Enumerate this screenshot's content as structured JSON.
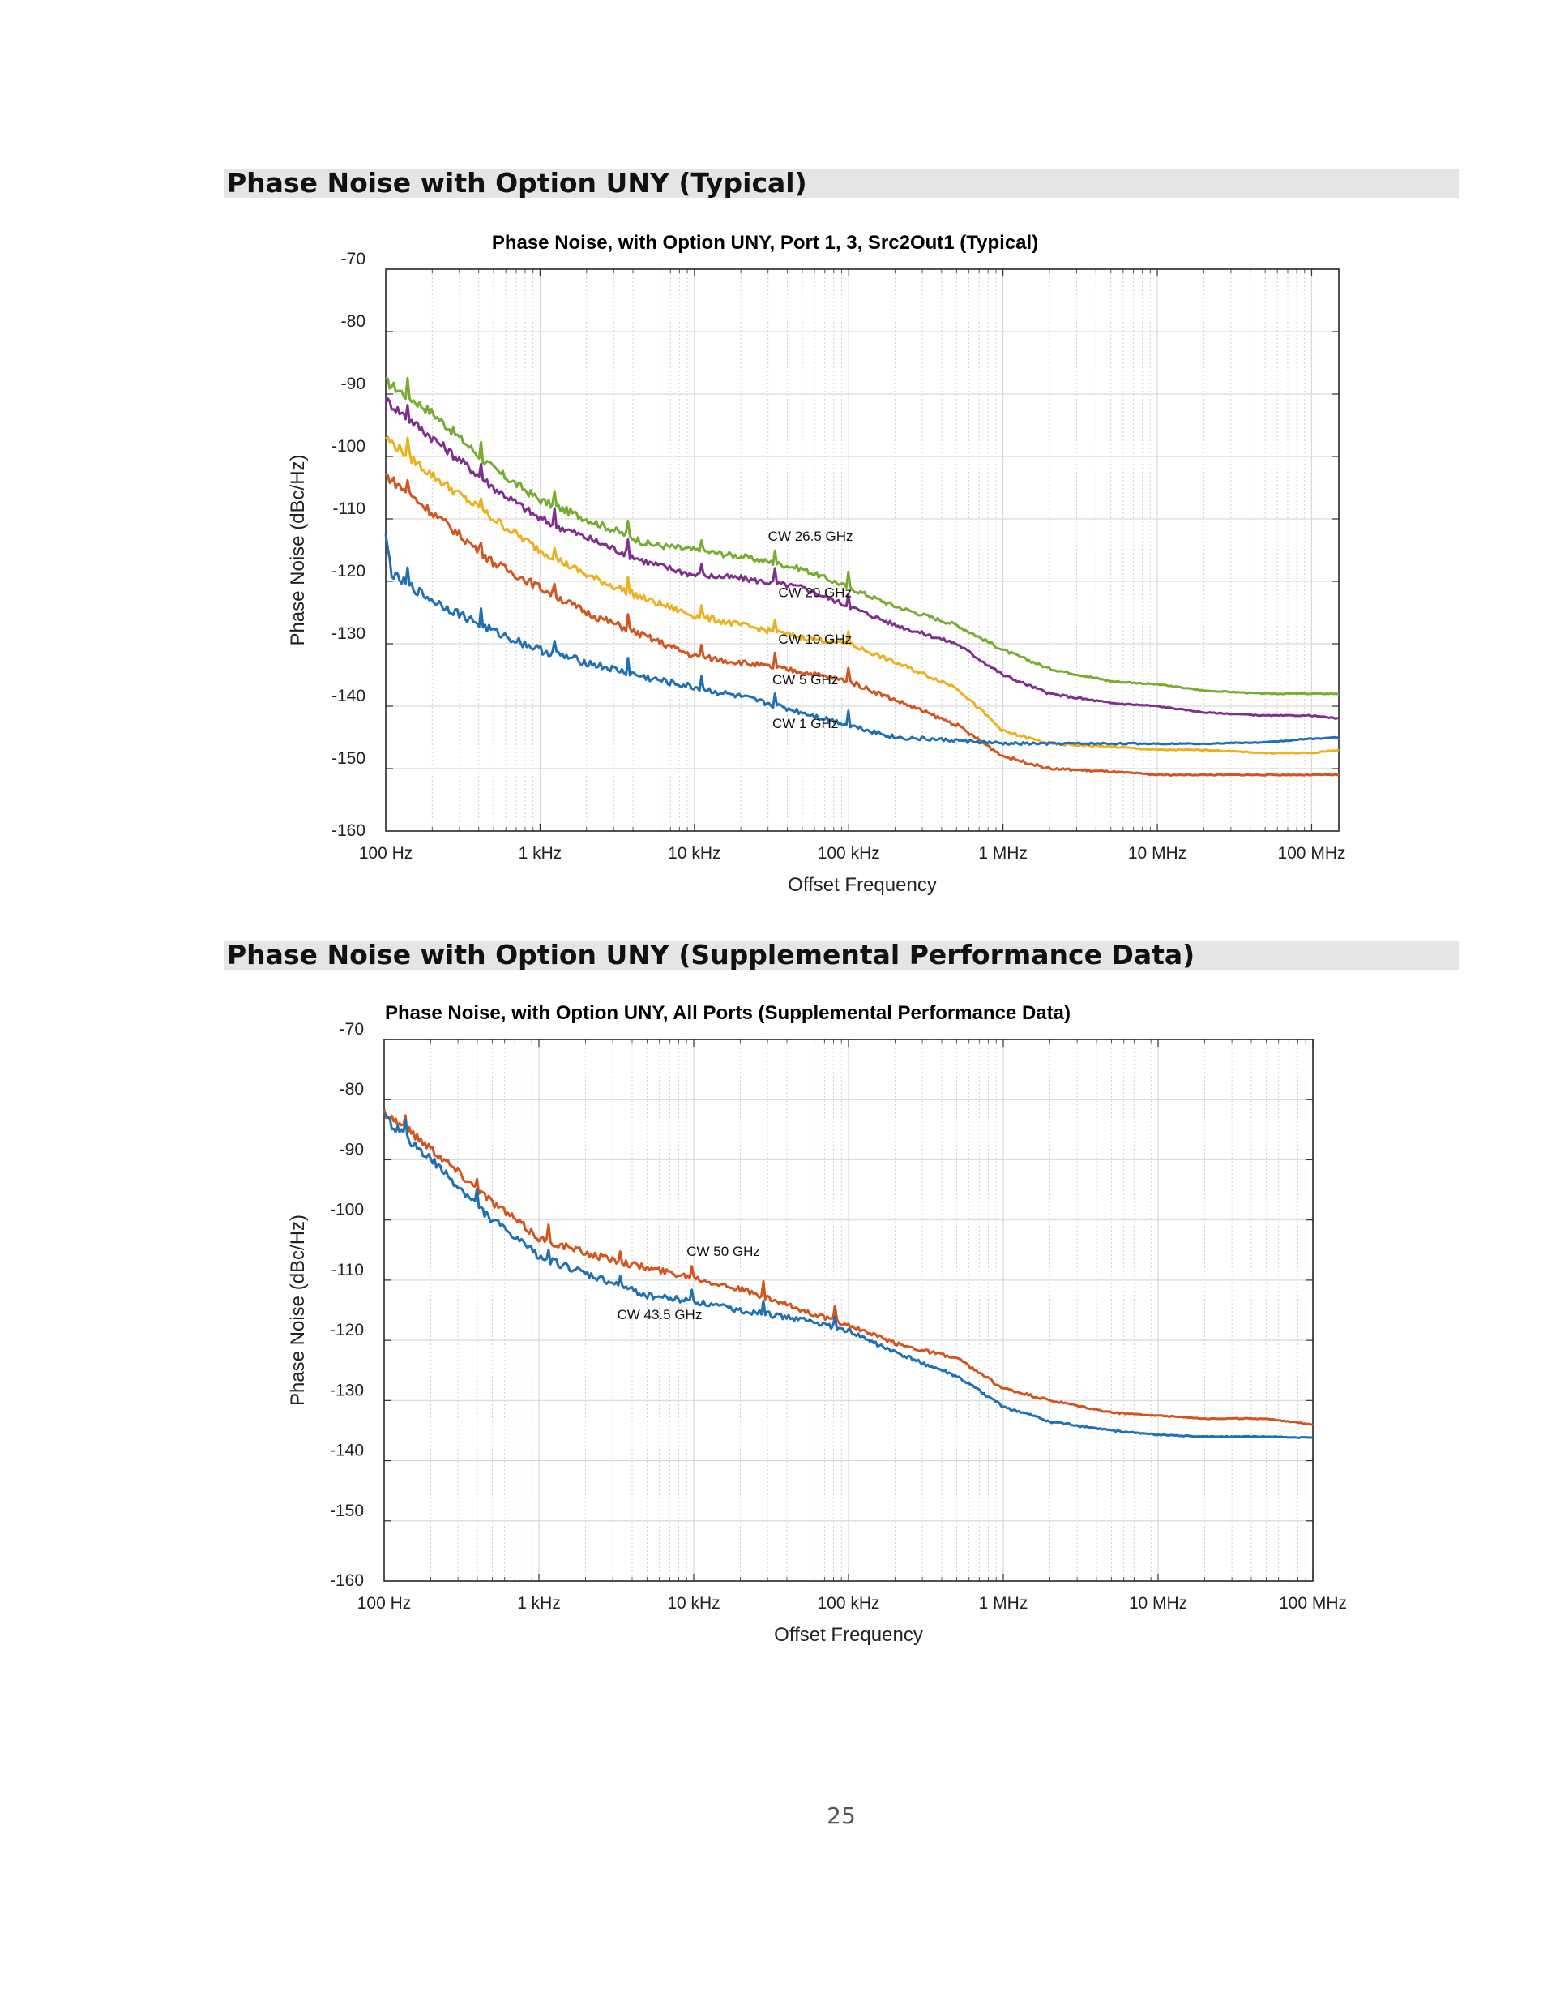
{
  "sections": [
    {
      "title": "Phase Noise with Option UNY (Typical)"
    },
    {
      "title": "Phase Noise with Option UNY (Supplemental Performance Data)"
    }
  ],
  "page_number": "25",
  "colors": {
    "blue": "#1f6fb4",
    "orange": "#d4541e",
    "yellow": "#edb120",
    "purple": "#7e2f8e",
    "green": "#77ac30",
    "section_bar": "#e5e5e5",
    "grid": "#d9d9d9"
  },
  "chart_data": [
    {
      "type": "line",
      "title": "Phase Noise, with Option UNY, Port 1, 3, Src2Out1 (Typical)",
      "xlabel": "Offset Frequency",
      "ylabel": "Phase Noise (dBc/Hz)",
      "x_scale": "log",
      "xlim": [
        100,
        150000000
      ],
      "ylim": [
        -160,
        -70
      ],
      "xticks": [
        100,
        1000,
        10000,
        100000,
        1000000,
        10000000,
        100000000
      ],
      "xtick_labels": [
        "100 Hz",
        "1 kHz",
        "10 kHz",
        "100 kHz",
        "1 MHz",
        "10 MHz",
        "100 MHz"
      ],
      "yticks": [
        -70,
        -80,
        -90,
        -100,
        -110,
        -120,
        -130,
        -140,
        -150,
        -160
      ],
      "ytick_labels": [
        "-70",
        "-80",
        "-90",
        "-100",
        "-110",
        "-120",
        "-130",
        "-140",
        "-150",
        "-160"
      ],
      "grid": true,
      "series": [
        {
          "name": "CW 26.5 GHz",
          "color": "green",
          "x": [
            100,
            200,
            500,
            1000,
            2000,
            5000,
            10000,
            20000,
            50000,
            100000,
            200000,
            500000,
            1000000,
            2000000,
            5000000,
            10000000,
            20000000,
            50000000,
            100000000,
            150000000
          ],
          "y": [
            -88,
            -93,
            -102,
            -107,
            -110,
            -114,
            -115,
            -116,
            -118,
            -121,
            -124,
            -127,
            -131,
            -134,
            -136,
            -136.5,
            -137.5,
            -138,
            -138,
            -138
          ]
        },
        {
          "name": "CW 20 GHz",
          "color": "purple",
          "x": [
            100,
            200,
            500,
            1000,
            2000,
            5000,
            10000,
            20000,
            50000,
            100000,
            200000,
            500000,
            1000000,
            2000000,
            5000000,
            10000000,
            20000000,
            50000000,
            100000000,
            150000000
          ],
          "y": [
            -91,
            -97,
            -105,
            -110,
            -113,
            -117,
            -119,
            -119.5,
            -121,
            -124,
            -127,
            -130,
            -135,
            -138,
            -139.5,
            -140,
            -141,
            -141.5,
            -141.5,
            -142
          ]
        },
        {
          "name": "CW 10 GHz",
          "color": "yellow",
          "x": [
            100,
            200,
            500,
            1000,
            2000,
            5000,
            10000,
            20000,
            50000,
            100000,
            200000,
            500000,
            1000000,
            2000000,
            5000000,
            10000000,
            20000000,
            50000000,
            100000000,
            150000000
          ],
          "y": [
            -97,
            -103,
            -110,
            -115,
            -119,
            -123,
            -125.5,
            -127,
            -129,
            -130,
            -133,
            -137,
            -144,
            -146,
            -146.5,
            -147,
            -147,
            -147.5,
            -147.5,
            -147
          ]
        },
        {
          "name": "CW 5 GHz",
          "color": "orange",
          "x": [
            100,
            200,
            500,
            1000,
            2000,
            5000,
            10000,
            20000,
            50000,
            100000,
            200000,
            500000,
            1000000,
            2000000,
            5000000,
            10000000,
            20000000,
            50000000,
            100000000,
            150000000
          ],
          "y": [
            -103,
            -109,
            -117,
            -121,
            -125,
            -129,
            -132,
            -133,
            -134.5,
            -136,
            -139,
            -143,
            -148,
            -150,
            -150.5,
            -151,
            -151,
            -151,
            -151,
            -151
          ]
        },
        {
          "name": "CW 1 GHz",
          "color": "blue",
          "x": [
            100,
            110,
            200,
            500,
            1000,
            2000,
            5000,
            10000,
            20000,
            50000,
            100000,
            200000,
            500000,
            1000000,
            2000000,
            5000000,
            10000000,
            20000000,
            50000000,
            100000000,
            150000000
          ],
          "y": [
            -113,
            -119,
            -123,
            -128,
            -131,
            -133,
            -135.5,
            -137,
            -138.5,
            -141,
            -143,
            -145,
            -145.5,
            -146,
            -146,
            -146,
            -146,
            -146,
            -145.8,
            -145.2,
            -145
          ]
        }
      ],
      "annotations": [
        {
          "text": "CW 26.5 GHz",
          "x": 30000,
          "y": -113.5
        },
        {
          "text": "CW 20 GHz",
          "x": 35000,
          "y": -122.5
        },
        {
          "text": "CW 10 GHz",
          "x": 35000,
          "y": -130
        },
        {
          "text": "CW 5 GHz",
          "x": 32000,
          "y": -136.5
        },
        {
          "text": "CW 1 GHz",
          "x": 32000,
          "y": -143.5
        }
      ]
    },
    {
      "type": "line",
      "title": "Phase Noise, with Option UNY, All Ports (Supplemental Performance Data)",
      "xlabel": "Offset Frequency",
      "ylabel": "Phase Noise (dBc/Hz)",
      "x_scale": "log",
      "xlim": [
        100,
        100000000
      ],
      "ylim": [
        -160,
        -70
      ],
      "xticks": [
        100,
        1000,
        10000,
        100000,
        1000000,
        10000000,
        100000000
      ],
      "xtick_labels": [
        "100 Hz",
        "1 kHz",
        "10 kHz",
        "100 kHz",
        "1 MHz",
        "10 MHz",
        "100 MHz"
      ],
      "yticks": [
        -70,
        -80,
        -90,
        -100,
        -110,
        -120,
        -130,
        -140,
        -150,
        -160
      ],
      "ytick_labels": [
        "-70",
        "-80",
        "-90",
        "-100",
        "-110",
        "-120",
        "-130",
        "-140",
        "-150",
        "-160"
      ],
      "grid": true,
      "series": [
        {
          "name": "CW 50 GHz",
          "color": "orange",
          "x": [
            100,
            200,
            500,
            1000,
            2000,
            5000,
            10000,
            20000,
            50000,
            100000,
            200000,
            500000,
            1000000,
            2000000,
            5000000,
            10000000,
            20000000,
            50000000,
            100000000
          ],
          "y": [
            -82,
            -88,
            -97,
            -103,
            -105.5,
            -108,
            -109.5,
            -111.5,
            -115,
            -117.5,
            -120.5,
            -123,
            -128,
            -130,
            -132,
            -132.5,
            -133,
            -133,
            -134
          ]
        },
        {
          "name": "CW 43.5 GHz",
          "color": "blue",
          "x": [
            100,
            200,
            500,
            1000,
            2000,
            5000,
            10000,
            20000,
            50000,
            100000,
            200000,
            500000,
            1000000,
            2000000,
            5000000,
            10000000,
            20000000,
            50000000,
            100000000
          ],
          "y": [
            -83,
            -90,
            -100,
            -106,
            -109,
            -112.5,
            -113.5,
            -115,
            -116.5,
            -118.5,
            -122,
            -126,
            -131,
            -133.5,
            -135,
            -135.7,
            -136,
            -136,
            -136.2
          ]
        }
      ],
      "annotations": [
        {
          "text": "CW 50 GHz",
          "x": 9000,
          "y": -106
        },
        {
          "text": "CW 43.5 GHz",
          "x": 3200,
          "y": -116.5
        }
      ]
    }
  ]
}
